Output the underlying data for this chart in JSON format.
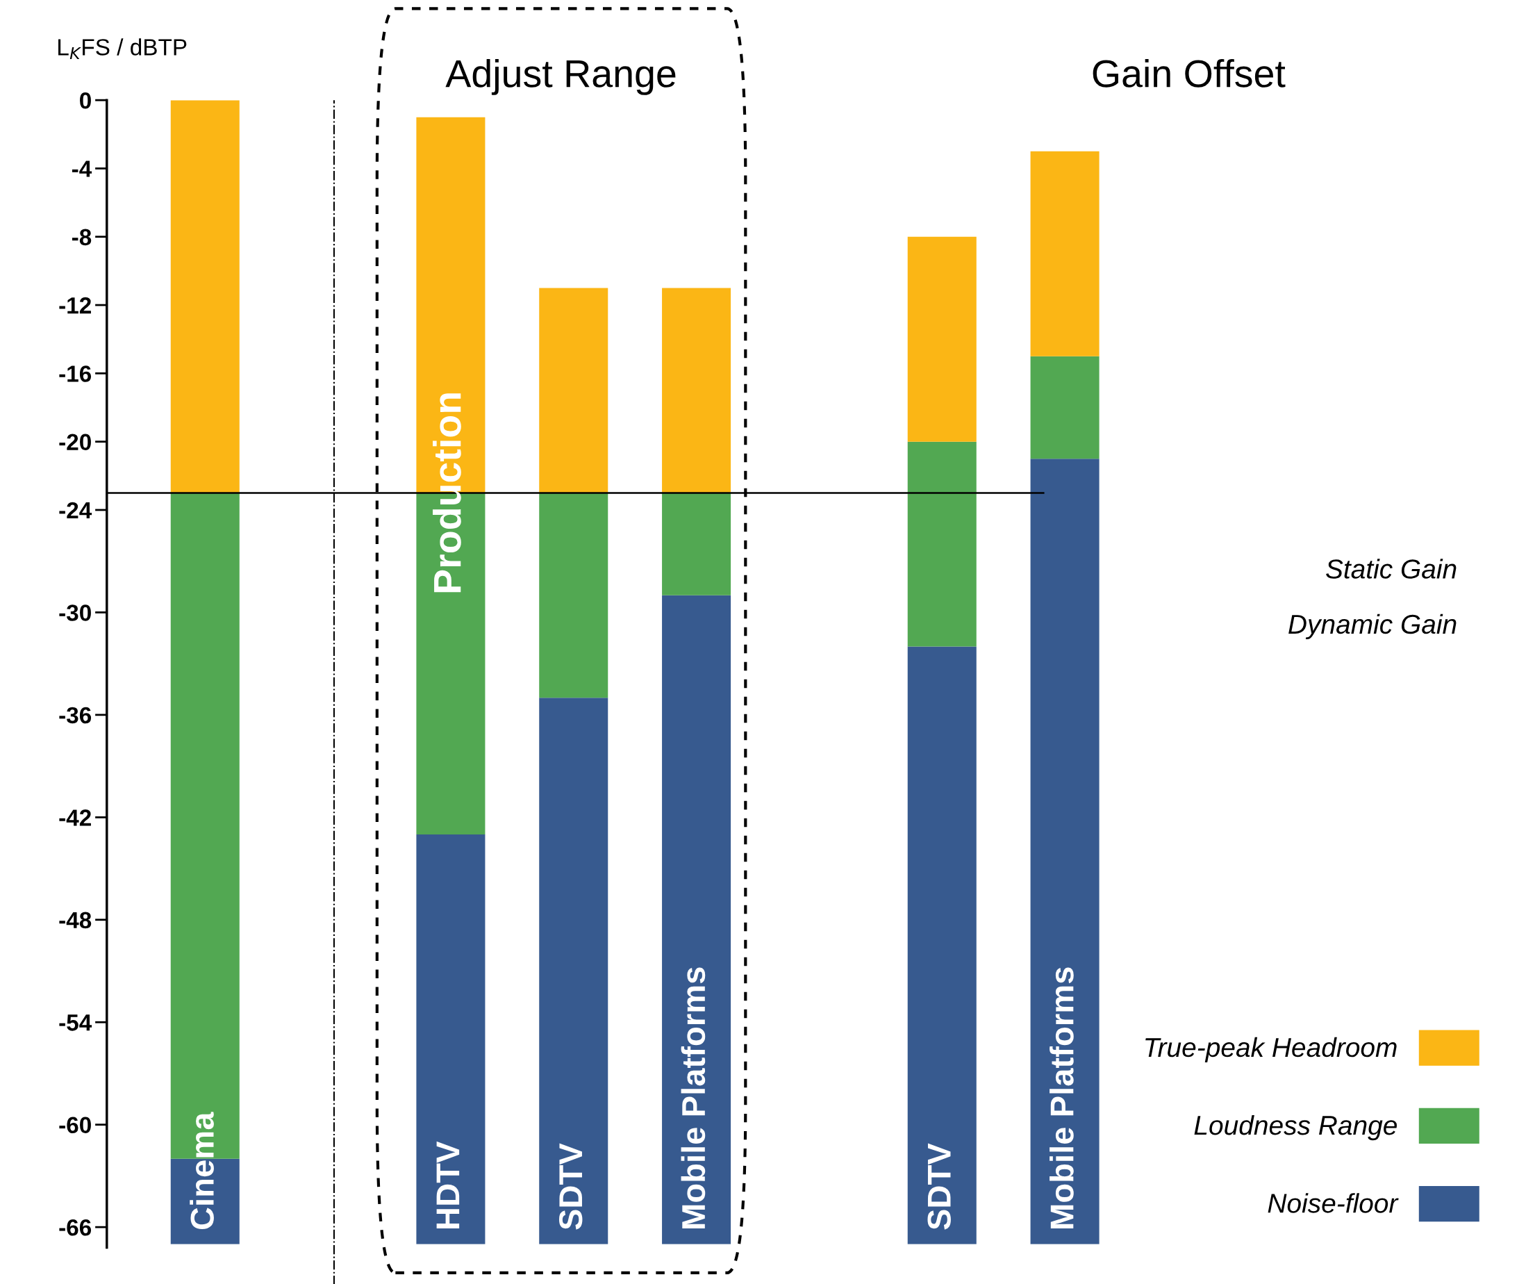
{
  "chart_data": {
    "type": "bar",
    "ylabel": "L$_{K}$FS / dBTP",
    "categories": [
      "Cinema",
      null,
      "HDTV",
      "SDTV",
      "Mobile Platforms",
      null,
      "SDTV",
      "Mobile Platforms"
    ],
    "series": [
      {
        "name": "Noise-floor",
        "color": "#375a8f",
        "base": [
          -67,
          null,
          -67,
          -67,
          -67,
          null,
          -67,
          -67
        ],
        "values": [
          5,
          null,
          24,
          32,
          38,
          null,
          35,
          46
        ]
      },
      {
        "name": "Loudness Range",
        "color": "#52a852",
        "base": [
          -62,
          null,
          -43,
          -35,
          -29,
          null,
          -32,
          -21
        ],
        "values": [
          39,
          null,
          20,
          12,
          6,
          null,
          12,
          6
        ]
      },
      {
        "name": "True-peak Headroom",
        "color": "#fbb615",
        "base": [
          -23,
          null,
          -23,
          -23,
          -23,
          null,
          -20,
          -15
        ],
        "values": [
          23,
          null,
          22,
          12,
          12,
          null,
          12,
          12
        ]
      }
    ],
    "ylim": [
      -67,
      0
    ],
    "yticks": [
      0,
      -4,
      -8,
      -12,
      -16,
      -20,
      -24,
      -30,
      -36,
      -42,
      -48,
      -54,
      -60,
      -66
    ],
    "ref_lines": [
      {
        "axis": "y",
        "value": -23,
        "color": "#000000"
      }
    ],
    "annotations": [
      "Adjust Range",
      "Gain Offset",
      "Static Gain",
      "Dynamic Gain",
      {
        "text": "Production",
        "x": "HDTV",
        "y": -23
      }
    ],
    "legend": "right",
    "tick_labels": "y"
  }
}
